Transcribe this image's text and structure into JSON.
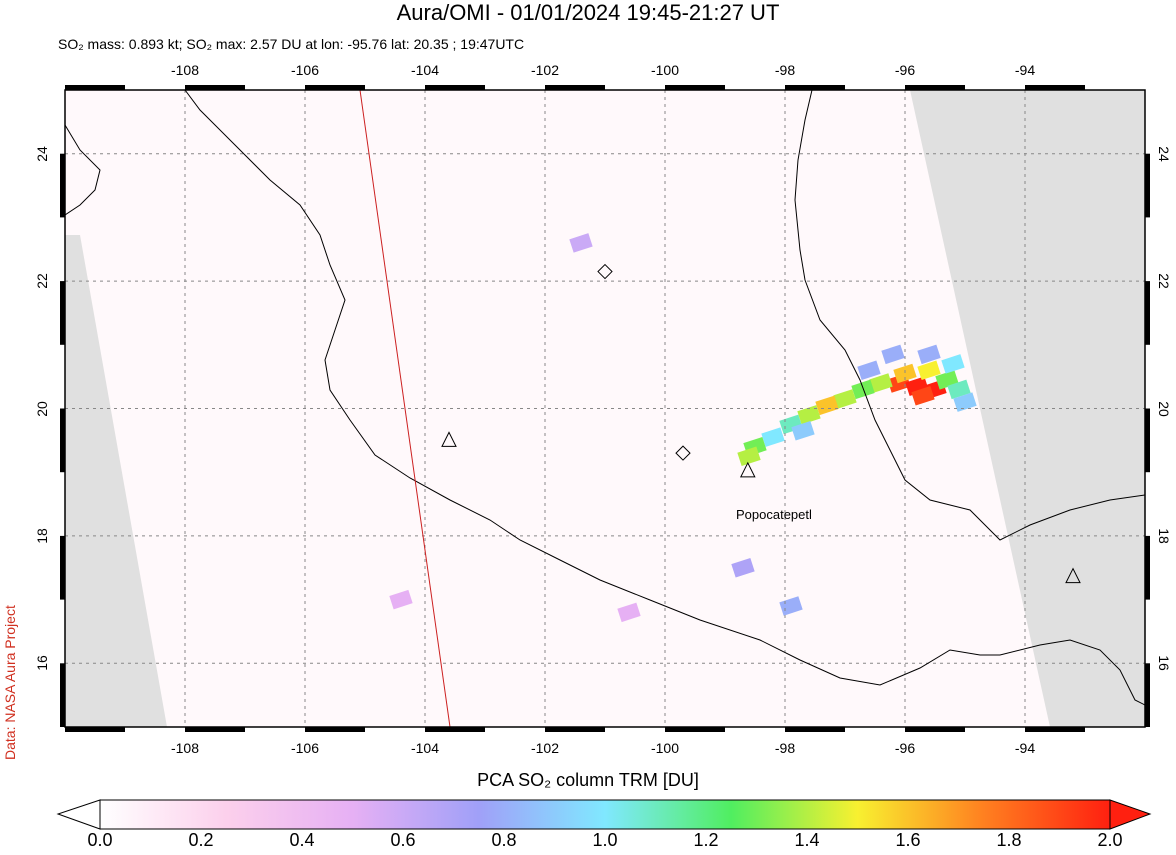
{
  "header": {
    "title": "Aura/OMI - 01/01/2024 19:45-21:27 UT",
    "subtitle": "SO₂ mass: 0.893 kt; SO₂ max: 2.57 DU at lon: -95.76 lat: 20.35 ; 19:47UTC"
  },
  "credit": "Data: NASA Aura Project",
  "map": {
    "lon_range": [
      -110,
      -92
    ],
    "lat_range": [
      15,
      25
    ],
    "lon_ticks": [
      "-108",
      "-106",
      "-104",
      "-102",
      "-100",
      "-98",
      "-96",
      "-94"
    ],
    "lat_ticks": [
      "16",
      "18",
      "20",
      "22",
      "24"
    ],
    "no_data_color": "#e0e0e0",
    "coast_color": "#000000",
    "orbit_line_color": "#cc2020",
    "volcano_label": "Popocatepetl",
    "volcanoes": [
      {
        "lon": -103.6,
        "lat": 19.5,
        "symbol": "triangle"
      },
      {
        "lon": -98.62,
        "lat": 19.02,
        "symbol": "triangle"
      },
      {
        "lon": -93.2,
        "lat": 17.36,
        "symbol": "triangle"
      },
      {
        "lon": -101.0,
        "lat": 22.15,
        "symbol": "diamond"
      },
      {
        "lon": -99.7,
        "lat": 19.3,
        "symbol": "diamond"
      }
    ],
    "plume": [
      {
        "lon": -96.1,
        "lat": 20.4,
        "du": 1.9
      },
      {
        "lon": -95.8,
        "lat": 20.35,
        "du": 2.0
      },
      {
        "lon": -95.5,
        "lat": 20.3,
        "du": 2.0
      },
      {
        "lon": -95.7,
        "lat": 20.2,
        "du": 1.9
      },
      {
        "lon": -96.0,
        "lat": 20.55,
        "du": 1.6
      },
      {
        "lon": -95.6,
        "lat": 20.6,
        "du": 1.5
      },
      {
        "lon": -95.3,
        "lat": 20.45,
        "du": 1.3
      },
      {
        "lon": -95.1,
        "lat": 20.3,
        "du": 1.1
      },
      {
        "lon": -96.4,
        "lat": 20.4,
        "du": 1.4
      },
      {
        "lon": -96.7,
        "lat": 20.3,
        "du": 1.3
      },
      {
        "lon": -97.0,
        "lat": 20.15,
        "du": 1.4
      },
      {
        "lon": -97.3,
        "lat": 20.05,
        "du": 1.6
      },
      {
        "lon": -97.6,
        "lat": 19.9,
        "du": 1.4
      },
      {
        "lon": -97.9,
        "lat": 19.75,
        "du": 1.1
      },
      {
        "lon": -98.2,
        "lat": 19.55,
        "du": 1.0
      },
      {
        "lon": -98.5,
        "lat": 19.4,
        "du": 1.3
      },
      {
        "lon": -98.6,
        "lat": 19.25,
        "du": 1.4
      },
      {
        "lon": -96.2,
        "lat": 20.85,
        "du": 0.8
      },
      {
        "lon": -95.6,
        "lat": 20.85,
        "du": 0.8
      },
      {
        "lon": -95.2,
        "lat": 20.7,
        "du": 1.0
      },
      {
        "lon": -96.6,
        "lat": 20.6,
        "du": 0.8
      },
      {
        "lon": -95.0,
        "lat": 20.1,
        "du": 0.9
      },
      {
        "lon": -97.7,
        "lat": 19.65,
        "du": 0.9
      },
      {
        "lon": -98.7,
        "lat": 17.5,
        "du": 0.7
      },
      {
        "lon": -101.4,
        "lat": 22.6,
        "du": 0.6
      },
      {
        "lon": -104.4,
        "lat": 17.0,
        "du": 0.5
      },
      {
        "lon": -100.6,
        "lat": 16.8,
        "du": 0.5
      },
      {
        "lon": -97.9,
        "lat": 16.9,
        "du": 0.8
      }
    ]
  },
  "colorbar": {
    "title": "PCA SO₂ column TRM [DU]",
    "ticks": [
      "0.0",
      "0.2",
      "0.4",
      "0.6",
      "0.8",
      "1.0",
      "1.2",
      "1.4",
      "1.6",
      "1.8",
      "2.0"
    ],
    "range": [
      0,
      2
    ],
    "colors": [
      "#ffffff",
      "#fcd0ec",
      "#e6b0f4",
      "#a0a0f8",
      "#80e8ff",
      "#50ee60",
      "#f8f030",
      "#ff8020",
      "#ff2010"
    ]
  }
}
